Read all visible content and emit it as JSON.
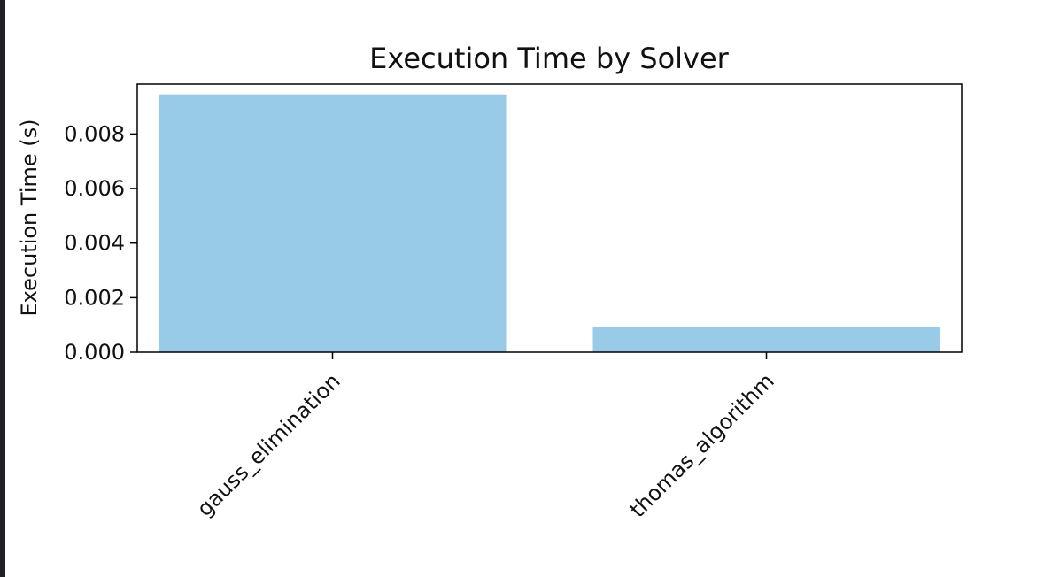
{
  "chart_data": {
    "type": "bar",
    "title": "Execution Time by Solver",
    "xlabel": "",
    "ylabel": "Execution Time (s)",
    "categories": [
      "gauss_elimination",
      "thomas_algorithm"
    ],
    "values": [
      0.00945,
      0.00093
    ],
    "ylim": [
      0,
      0.00983
    ],
    "yticks": [
      0.0,
      0.002,
      0.004,
      0.006,
      0.008
    ],
    "ytick_labels": [
      "0.000",
      "0.002",
      "0.004",
      "0.006",
      "0.008"
    ],
    "grid": false,
    "legend": "none",
    "bar_color": "#97cbe8"
  }
}
